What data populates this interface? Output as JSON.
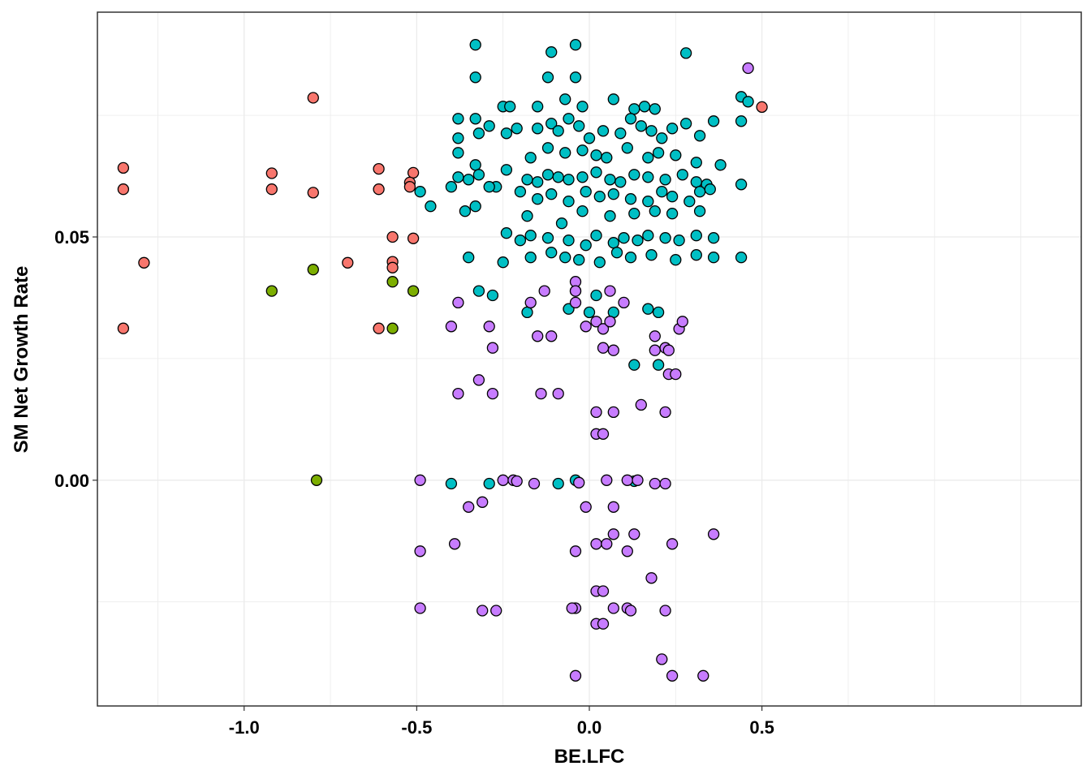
{
  "chart_data": {
    "type": "scatter",
    "title": "",
    "xlabel": "BE.LFC",
    "ylabel": "SM Net Growth Rate",
    "xlim": [
      -1.425,
      1.425
    ],
    "ylim": [
      -0.0464,
      0.0962
    ],
    "xticks": [
      -1.0,
      -0.5,
      0.0,
      0.5
    ],
    "xtick_labels": [
      "-1.0",
      "-0.5",
      "0.0",
      "0.5"
    ],
    "yticks": [
      0.0,
      0.05
    ],
    "ytick_labels": [
      "0.00",
      "0.05"
    ],
    "grid": true,
    "legend": "none",
    "colors": {
      "red": "#F8766D",
      "green": "#7CAE00",
      "teal": "#00BFC4",
      "purple": "#C77CFF",
      "panel_border": "#333333",
      "grid": "#EBEBEB"
    },
    "series": [
      {
        "name": "red",
        "color": "#F8766D",
        "points": [
          [
            -1.35,
            0.0642
          ],
          [
            -1.35,
            0.0598
          ],
          [
            -1.29,
            0.0447
          ],
          [
            -1.35,
            0.0312
          ],
          [
            -0.92,
            0.0631
          ],
          [
            -0.92,
            0.0598
          ],
          [
            -0.8,
            0.0786
          ],
          [
            -0.8,
            0.0591
          ],
          [
            -0.7,
            0.0447
          ],
          [
            -0.61,
            0.064
          ],
          [
            -0.61,
            0.0598
          ],
          [
            -0.61,
            0.0312
          ],
          [
            -0.57,
            0.05
          ],
          [
            -0.57,
            0.0449
          ],
          [
            -0.57,
            0.0437
          ],
          [
            -0.51,
            0.0632
          ],
          [
            -0.52,
            0.0612
          ],
          [
            -0.52,
            0.0603
          ],
          [
            -0.51,
            0.0497
          ],
          [
            0.5,
            0.0767
          ]
        ]
      },
      {
        "name": "green",
        "color": "#7CAE00",
        "points": [
          [
            -0.92,
            0.0389
          ],
          [
            -0.8,
            0.0433
          ],
          [
            -0.57,
            0.0408
          ],
          [
            -0.57,
            0.0312
          ],
          [
            -0.51,
            0.0389
          ],
          [
            -0.79,
            0.0
          ]
        ]
      },
      {
        "name": "teal",
        "color": "#00BFC4",
        "points": [
          [
            -0.33,
            0.0895
          ],
          [
            -0.11,
            0.088
          ],
          [
            -0.04,
            0.0895
          ],
          [
            0.28,
            0.0878
          ],
          [
            -0.33,
            0.0828
          ],
          [
            -0.12,
            0.0828
          ],
          [
            -0.04,
            0.0828
          ],
          [
            -0.38,
            0.0743
          ],
          [
            -0.33,
            0.0743
          ],
          [
            -0.25,
            0.0768
          ],
          [
            -0.23,
            0.0768
          ],
          [
            -0.15,
            0.0768
          ],
          [
            -0.07,
            0.0783
          ],
          [
            -0.02,
            0.0768
          ],
          [
            0.07,
            0.0783
          ],
          [
            0.13,
            0.0763
          ],
          [
            0.16,
            0.0768
          ],
          [
            0.19,
            0.0763
          ],
          [
            0.44,
            0.0788
          ],
          [
            0.46,
            0.0778
          ],
          [
            -0.38,
            0.0703
          ],
          [
            -0.32,
            0.0713
          ],
          [
            -0.29,
            0.0728
          ],
          [
            -0.24,
            0.0713
          ],
          [
            -0.21,
            0.0723
          ],
          [
            -0.15,
            0.0723
          ],
          [
            -0.11,
            0.0733
          ],
          [
            -0.09,
            0.0718
          ],
          [
            -0.06,
            0.0743
          ],
          [
            -0.03,
            0.0728
          ],
          [
            0.0,
            0.0703
          ],
          [
            0.04,
            0.0718
          ],
          [
            0.09,
            0.0713
          ],
          [
            0.12,
            0.0743
          ],
          [
            0.15,
            0.0728
          ],
          [
            0.18,
            0.0718
          ],
          [
            0.21,
            0.0703
          ],
          [
            0.24,
            0.0723
          ],
          [
            0.28,
            0.0733
          ],
          [
            0.32,
            0.0708
          ],
          [
            0.36,
            0.0738
          ],
          [
            0.44,
            0.0738
          ],
          [
            -0.38,
            0.0673
          ],
          [
            -0.33,
            0.0648
          ],
          [
            -0.17,
            0.0663
          ],
          [
            -0.12,
            0.0683
          ],
          [
            -0.07,
            0.0673
          ],
          [
            -0.02,
            0.0678
          ],
          [
            0.02,
            0.0668
          ],
          [
            0.05,
            0.0663
          ],
          [
            0.11,
            0.0683
          ],
          [
            0.17,
            0.0663
          ],
          [
            0.2,
            0.0673
          ],
          [
            0.25,
            0.0668
          ],
          [
            0.31,
            0.0653
          ],
          [
            0.38,
            0.0648
          ],
          [
            -0.38,
            0.0623
          ],
          [
            -0.35,
            0.0618
          ],
          [
            -0.32,
            0.0628
          ],
          [
            -0.27,
            0.0603
          ],
          [
            -0.24,
            0.0638
          ],
          [
            -0.18,
            0.0618
          ],
          [
            -0.15,
            0.0613
          ],
          [
            -0.12,
            0.0628
          ],
          [
            -0.09,
            0.0623
          ],
          [
            -0.06,
            0.0618
          ],
          [
            -0.02,
            0.0623
          ],
          [
            0.02,
            0.0633
          ],
          [
            0.06,
            0.0618
          ],
          [
            0.09,
            0.0613
          ],
          [
            0.13,
            0.0628
          ],
          [
            0.17,
            0.0623
          ],
          [
            0.22,
            0.0618
          ],
          [
            0.27,
            0.0628
          ],
          [
            0.31,
            0.0613
          ],
          [
            0.34,
            0.0608
          ],
          [
            0.44,
            0.0608
          ],
          [
            -0.4,
            0.0603
          ],
          [
            -0.36,
            0.0553
          ],
          [
            -0.33,
            0.0563
          ],
          [
            -0.29,
            0.0603
          ],
          [
            -0.2,
            0.0593
          ],
          [
            -0.15,
            0.0578
          ],
          [
            -0.11,
            0.0588
          ],
          [
            -0.06,
            0.0573
          ],
          [
            -0.01,
            0.0593
          ],
          [
            0.03,
            0.0583
          ],
          [
            0.07,
            0.0588
          ],
          [
            0.12,
            0.0578
          ],
          [
            0.17,
            0.0573
          ],
          [
            0.21,
            0.0593
          ],
          [
            0.24,
            0.0583
          ],
          [
            0.29,
            0.0573
          ],
          [
            0.32,
            0.0593
          ],
          [
            0.35,
            0.0598
          ],
          [
            -0.46,
            0.0563
          ],
          [
            -0.49,
            0.0593
          ],
          [
            -0.18,
            0.0543
          ],
          [
            -0.08,
            0.0528
          ],
          [
            -0.02,
            0.0553
          ],
          [
            0.06,
            0.0543
          ],
          [
            0.13,
            0.0548
          ],
          [
            0.19,
            0.0553
          ],
          [
            0.24,
            0.0548
          ],
          [
            0.32,
            0.0553
          ],
          [
            -0.24,
            0.0508
          ],
          [
            -0.2,
            0.0493
          ],
          [
            -0.17,
            0.0503
          ],
          [
            -0.12,
            0.0498
          ],
          [
            -0.06,
            0.0493
          ],
          [
            -0.01,
            0.0483
          ],
          [
            0.02,
            0.0503
          ],
          [
            0.07,
            0.0488
          ],
          [
            0.1,
            0.0498
          ],
          [
            0.14,
            0.0493
          ],
          [
            0.17,
            0.0503
          ],
          [
            0.22,
            0.0498
          ],
          [
            0.26,
            0.0493
          ],
          [
            0.31,
            0.0503
          ],
          [
            0.36,
            0.0498
          ],
          [
            -0.35,
            0.0458
          ],
          [
            -0.25,
            0.0448
          ],
          [
            -0.17,
            0.0458
          ],
          [
            -0.11,
            0.0468
          ],
          [
            -0.07,
            0.0458
          ],
          [
            -0.03,
            0.0453
          ],
          [
            0.03,
            0.0448
          ],
          [
            0.08,
            0.0468
          ],
          [
            0.12,
            0.0458
          ],
          [
            0.18,
            0.0463
          ],
          [
            0.25,
            0.0453
          ],
          [
            0.31,
            0.0463
          ],
          [
            0.36,
            0.0458
          ],
          [
            0.44,
            0.0458
          ],
          [
            -0.32,
            0.0389
          ],
          [
            -0.28,
            0.038
          ],
          [
            -0.04,
            0.0389
          ],
          [
            0.02,
            0.038
          ],
          [
            -0.18,
            0.0345
          ],
          [
            -0.06,
            0.0352
          ],
          [
            0.0,
            0.0345
          ],
          [
            0.07,
            0.0345
          ],
          [
            0.17,
            0.0352
          ],
          [
            0.2,
            0.0345
          ],
          [
            0.13,
            0.0237
          ],
          [
            0.2,
            0.0237
          ],
          [
            -0.4,
            -0.0007
          ],
          [
            -0.29,
            -0.0007
          ],
          [
            -0.09,
            -0.0007
          ],
          [
            -0.04,
            0.0
          ],
          [
            0.13,
            -0.0002
          ]
        ]
      },
      {
        "name": "purple",
        "color": "#C77CFF",
        "points": [
          [
            0.46,
            0.0847
          ],
          [
            -0.04,
            0.0408
          ],
          [
            -0.04,
            0.0389
          ],
          [
            -0.04,
            0.0365
          ],
          [
            -0.13,
            0.0389
          ],
          [
            -0.38,
            0.0365
          ],
          [
            -0.17,
            0.0365
          ],
          [
            0.06,
            0.0389
          ],
          [
            0.1,
            0.0365
          ],
          [
            -0.4,
            0.0316
          ],
          [
            -0.29,
            0.0316
          ],
          [
            -0.15,
            0.0296
          ],
          [
            -0.11,
            0.0296
          ],
          [
            -0.01,
            0.0316
          ],
          [
            0.02,
            0.0326
          ],
          [
            0.04,
            0.0311
          ],
          [
            0.06,
            0.0326
          ],
          [
            0.26,
            0.0311
          ],
          [
            0.27,
            0.0326
          ],
          [
            -0.28,
            0.0272
          ],
          [
            0.04,
            0.0272
          ],
          [
            0.07,
            0.0267
          ],
          [
            0.19,
            0.0296
          ],
          [
            0.19,
            0.0267
          ],
          [
            0.22,
            0.0272
          ],
          [
            0.23,
            0.0267
          ],
          [
            -0.32,
            0.0206
          ],
          [
            -0.38,
            0.0178
          ],
          [
            -0.28,
            0.0178
          ],
          [
            -0.14,
            0.0178
          ],
          [
            -0.09,
            0.0178
          ],
          [
            0.23,
            0.0218
          ],
          [
            0.25,
            0.0218
          ],
          [
            0.02,
            0.014
          ],
          [
            0.07,
            0.014
          ],
          [
            0.15,
            0.0155
          ],
          [
            0.22,
            0.014
          ],
          [
            0.02,
            0.0095
          ],
          [
            0.04,
            0.0095
          ],
          [
            -0.49,
            0.0
          ],
          [
            -0.25,
            0.0
          ],
          [
            -0.22,
            0.0
          ],
          [
            -0.21,
            -0.0002
          ],
          [
            -0.16,
            -0.0007
          ],
          [
            -0.03,
            -0.0005
          ],
          [
            0.05,
            0.0
          ],
          [
            0.11,
            0.0
          ],
          [
            0.14,
            0.0
          ],
          [
            0.19,
            -0.0007
          ],
          [
            0.22,
            -0.0007
          ],
          [
            -0.35,
            -0.0055
          ],
          [
            -0.31,
            -0.0045
          ],
          [
            -0.01,
            -0.0055
          ],
          [
            0.07,
            -0.0055
          ],
          [
            -0.39,
            -0.0131
          ],
          [
            -0.04,
            -0.0146
          ],
          [
            0.02,
            -0.0131
          ],
          [
            0.05,
            -0.0131
          ],
          [
            0.07,
            -0.0111
          ],
          [
            0.13,
            -0.0111
          ],
          [
            0.24,
            -0.0131
          ],
          [
            0.36,
            -0.0111
          ],
          [
            0.11,
            -0.0146
          ],
          [
            0.18,
            -0.0201
          ],
          [
            -0.49,
            -0.0146
          ],
          [
            -0.49,
            -0.0263
          ],
          [
            -0.31,
            -0.0268
          ],
          [
            -0.27,
            -0.0268
          ],
          [
            -0.04,
            -0.0263
          ],
          [
            0.02,
            -0.0228
          ],
          [
            0.04,
            -0.0228
          ],
          [
            0.07,
            -0.0263
          ],
          [
            0.11,
            -0.0263
          ],
          [
            0.12,
            -0.0268
          ],
          [
            0.22,
            -0.0268
          ],
          [
            0.02,
            -0.0295
          ],
          [
            0.04,
            -0.0295
          ],
          [
            0.21,
            -0.0368
          ],
          [
            0.24,
            -0.0402
          ],
          [
            0.33,
            -0.0402
          ],
          [
            -0.04,
            -0.0402
          ],
          [
            -0.05,
            -0.0263
          ]
        ]
      }
    ]
  }
}
